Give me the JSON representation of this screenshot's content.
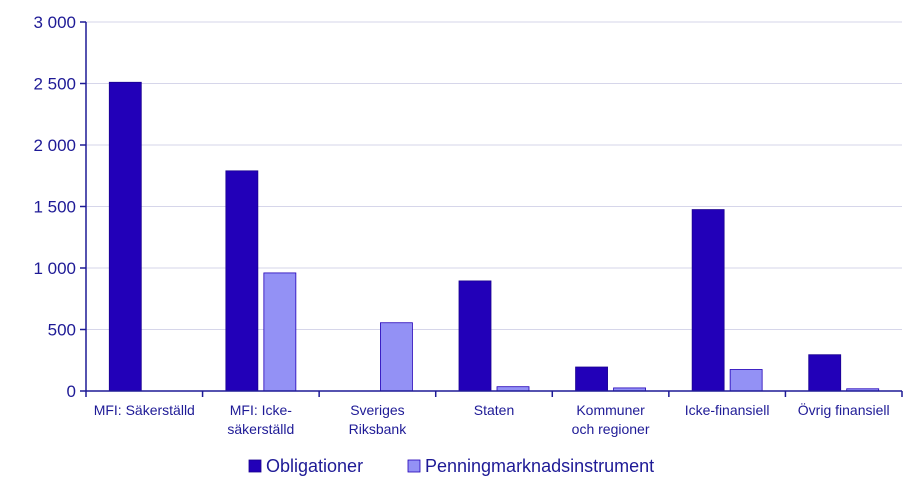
{
  "chart_data": {
    "type": "bar",
    "title": "",
    "xlabel": "",
    "ylabel": "",
    "ylim": [
      0,
      3000
    ],
    "yticks": [
      0,
      500,
      1000,
      1500,
      2000,
      2500,
      3000
    ],
    "ytick_labels": [
      "0",
      "500",
      "1 000",
      "1 500",
      "2 000",
      "2 500",
      "3 000"
    ],
    "grid": true,
    "legend_position": "bottom-center",
    "categories": [
      [
        "MFI: Säkerställd"
      ],
      [
        "MFI: Icke-",
        "säkerställd"
      ],
      [
        "Sveriges",
        "Riksbank"
      ],
      [
        "Staten"
      ],
      [
        "Kommuner",
        "och regioner"
      ],
      [
        "Icke-finansiell"
      ],
      [
        "Övrig finansiell"
      ]
    ],
    "series": [
      {
        "name": "Obligationer",
        "color": "#2200b8",
        "values": [
          2510,
          1790,
          0,
          895,
          195,
          1475,
          295
        ]
      },
      {
        "name": "Penningmarknadsinstrument",
        "color": "#9391f5",
        "values": [
          0,
          960,
          555,
          35,
          25,
          175,
          18
        ]
      }
    ]
  },
  "colors": {
    "axis": "#1e1a96",
    "grid": "#d6d6ea",
    "text": "#1e1a96"
  }
}
